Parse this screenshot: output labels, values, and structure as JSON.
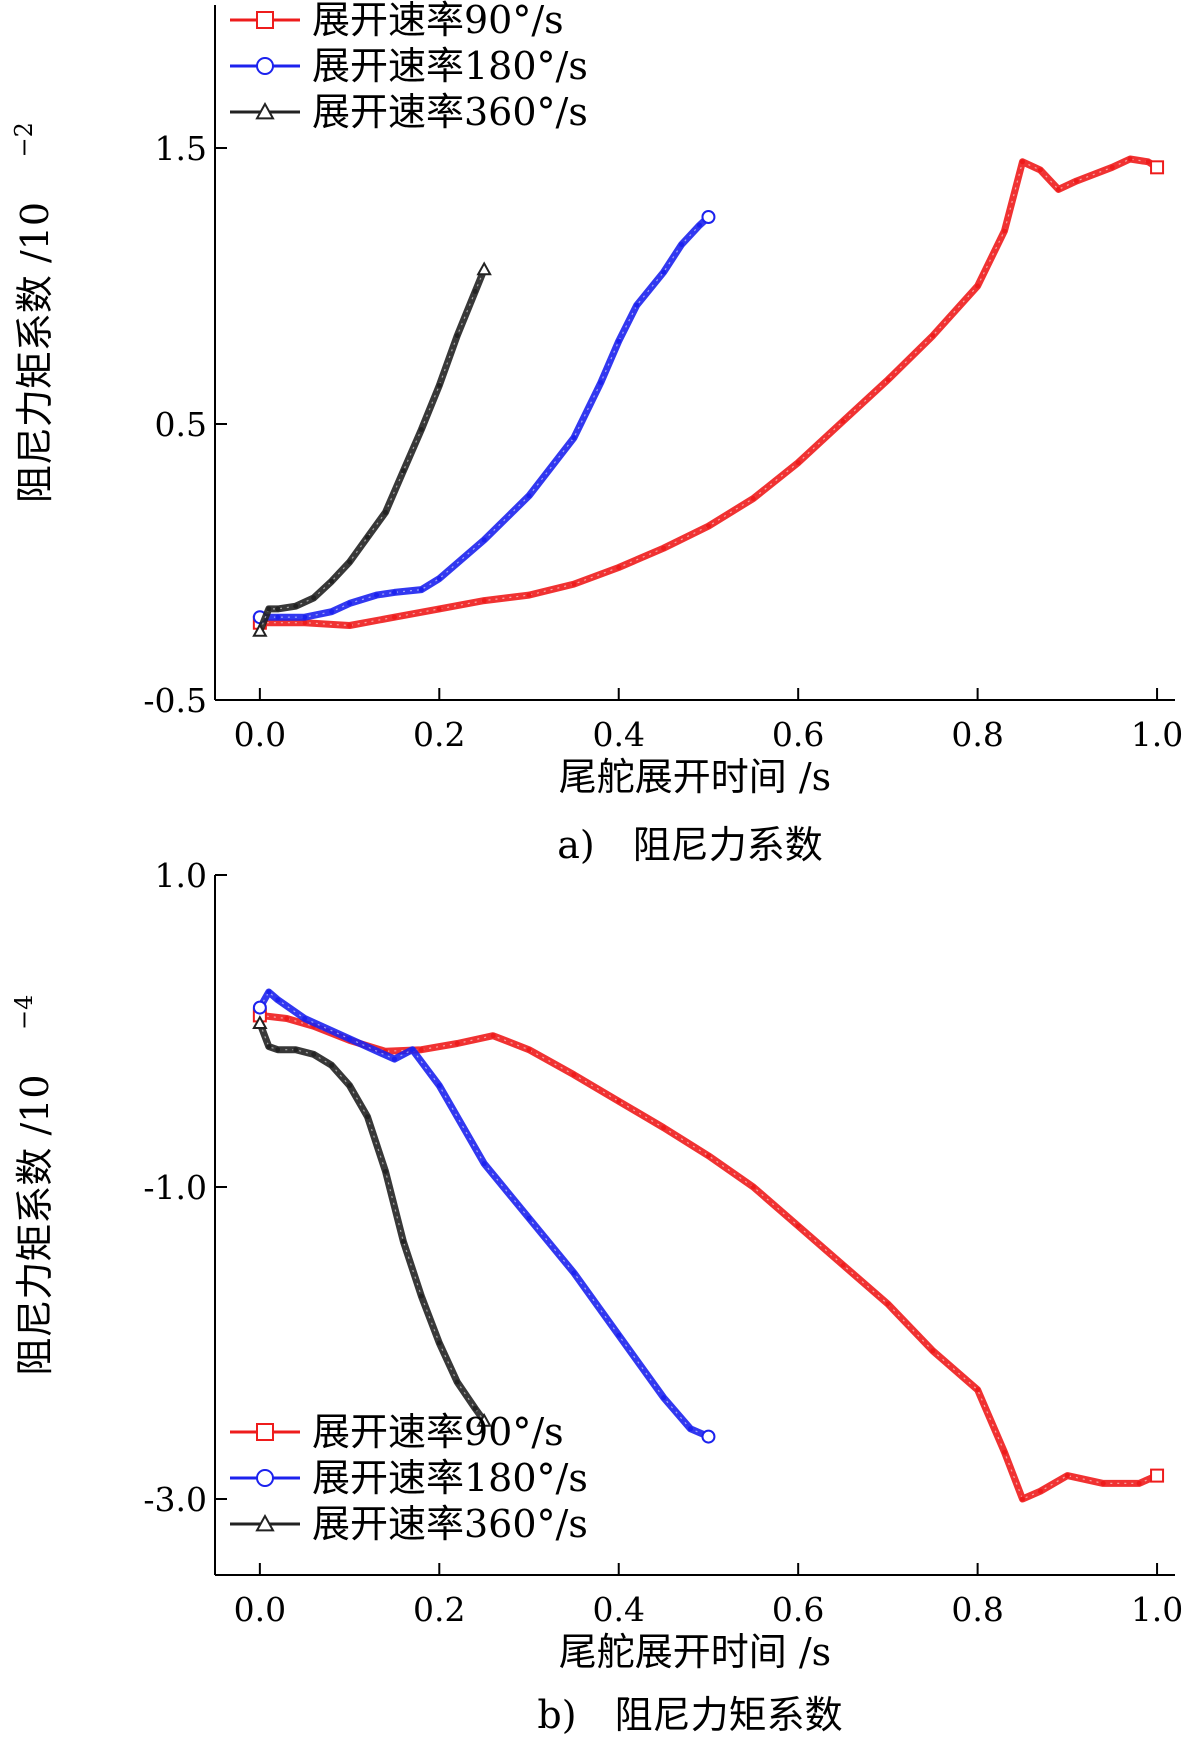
{
  "chart_data": [
    {
      "type": "line",
      "caption": "a)　阻尼力系数",
      "xlabel": "尾舵展开时间 /s",
      "ylabel": "阻尼力矩系数 /10",
      "ylabel_exponent": "−2",
      "xlim": [
        -0.05,
        1.02
      ],
      "ylim": [
        -0.5,
        2.0
      ],
      "xticks": [
        "0.0",
        "0.2",
        "0.4",
        "0.6",
        "0.8",
        "1.0"
      ],
      "yticks": [
        "-0.5",
        "0.5",
        "1.5"
      ],
      "legend_position": "top-left",
      "series": [
        {
          "name": "展开速率90°/s",
          "marker": "square",
          "color": "#ee1c1c",
          "x": [
            0.0,
            0.05,
            0.1,
            0.15,
            0.2,
            0.25,
            0.3,
            0.35,
            0.4,
            0.45,
            0.5,
            0.55,
            0.6,
            0.65,
            0.7,
            0.75,
            0.8,
            0.83,
            0.85,
            0.87,
            0.89,
            0.91,
            0.95,
            0.97,
            0.99,
            1.0
          ],
          "y": [
            -0.22,
            -0.22,
            -0.23,
            -0.2,
            -0.17,
            -0.14,
            -0.12,
            -0.08,
            -0.02,
            0.05,
            0.13,
            0.23,
            0.36,
            0.51,
            0.66,
            0.82,
            1.0,
            1.2,
            1.45,
            1.42,
            1.35,
            1.38,
            1.43,
            1.46,
            1.45,
            1.43
          ]
        },
        {
          "name": "展开速率180°/s",
          "marker": "circle",
          "color": "#1c22ee",
          "x": [
            0.0,
            0.02,
            0.05,
            0.08,
            0.1,
            0.13,
            0.15,
            0.18,
            0.2,
            0.25,
            0.3,
            0.35,
            0.38,
            0.4,
            0.42,
            0.45,
            0.47,
            0.49,
            0.5
          ],
          "y": [
            -0.2,
            -0.2,
            -0.2,
            -0.18,
            -0.15,
            -0.12,
            -0.11,
            -0.1,
            -0.06,
            0.08,
            0.24,
            0.45,
            0.65,
            0.8,
            0.93,
            1.05,
            1.15,
            1.22,
            1.25
          ]
        },
        {
          "name": "展开速率360°/s",
          "marker": "triangle",
          "color": "#222222",
          "x": [
            0.0,
            0.01,
            0.02,
            0.04,
            0.06,
            0.08,
            0.1,
            0.12,
            0.14,
            0.16,
            0.18,
            0.2,
            0.22,
            0.24,
            0.25
          ],
          "y": [
            -0.25,
            -0.17,
            -0.17,
            -0.16,
            -0.13,
            -0.07,
            0.0,
            0.09,
            0.18,
            0.33,
            0.48,
            0.64,
            0.82,
            0.98,
            1.06
          ]
        }
      ]
    },
    {
      "type": "line",
      "caption": "b)　阻尼力矩系数",
      "xlabel": "尾舵展开时间 /s",
      "ylabel": "阻尼力矩系数 /10",
      "ylabel_exponent": "−4",
      "xlim": [
        -0.05,
        1.02
      ],
      "ylim": [
        -3.5,
        1.0
      ],
      "xticks": [
        "0.0",
        "0.2",
        "0.4",
        "0.6",
        "0.8",
        "1.0"
      ],
      "yticks": [
        "1.0",
        "-1.0",
        "-3.0"
      ],
      "legend_position": "bottom-left",
      "series": [
        {
          "name": "展开速率90°/s",
          "marker": "square",
          "color": "#ee1c1c",
          "x": [
            0.0,
            0.03,
            0.06,
            0.1,
            0.14,
            0.18,
            0.22,
            0.26,
            0.3,
            0.35,
            0.4,
            0.45,
            0.5,
            0.55,
            0.6,
            0.65,
            0.7,
            0.75,
            0.8,
            0.83,
            0.85,
            0.87,
            0.9,
            0.94,
            0.98,
            1.0
          ],
          "y": [
            0.1,
            0.08,
            0.03,
            -0.06,
            -0.13,
            -0.12,
            -0.08,
            -0.03,
            -0.12,
            -0.28,
            -0.45,
            -0.62,
            -0.8,
            -1.0,
            -1.25,
            -1.5,
            -1.75,
            -2.05,
            -2.3,
            -2.7,
            -3.0,
            -2.95,
            -2.85,
            -2.9,
            -2.9,
            -2.85
          ]
        },
        {
          "name": "展开速率180°/s",
          "marker": "circle",
          "color": "#1c22ee",
          "x": [
            0.0,
            0.01,
            0.02,
            0.05,
            0.1,
            0.15,
            0.17,
            0.2,
            0.25,
            0.3,
            0.35,
            0.4,
            0.45,
            0.48,
            0.5
          ],
          "y": [
            0.15,
            0.25,
            0.2,
            0.08,
            -0.05,
            -0.18,
            -0.12,
            -0.35,
            -0.85,
            -1.2,
            -1.55,
            -1.95,
            -2.35,
            -2.55,
            -2.6
          ]
        },
        {
          "name": "展开速率360°/s",
          "marker": "triangle",
          "color": "#222222",
          "x": [
            0.0,
            0.01,
            0.02,
            0.04,
            0.06,
            0.08,
            0.1,
            0.12,
            0.14,
            0.16,
            0.18,
            0.2,
            0.22,
            0.24,
            0.25
          ],
          "y": [
            0.05,
            -0.1,
            -0.12,
            -0.12,
            -0.15,
            -0.22,
            -0.35,
            -0.55,
            -0.9,
            -1.35,
            -1.7,
            -2.0,
            -2.25,
            -2.42,
            -2.5
          ]
        }
      ]
    }
  ]
}
